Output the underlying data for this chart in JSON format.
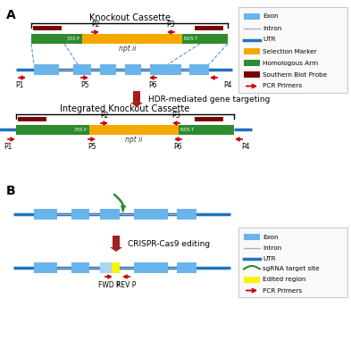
{
  "panel_A_label": "A",
  "panel_B_label": "B",
  "bg_color": "#ffffff",
  "legend_A": {
    "items": [
      {
        "label": "Exon",
        "type": "rect",
        "color": "#6ab4ec"
      },
      {
        "label": "Intron",
        "type": "line",
        "color": "#b0b0b0"
      },
      {
        "label": "UTR",
        "type": "line_thick",
        "color": "#2272c3"
      },
      {
        "label": "Selection Marker",
        "type": "rect",
        "color": "#f5a800"
      },
      {
        "label": "Homologous Arm",
        "type": "rect",
        "color": "#2e8b2e"
      },
      {
        "label": "Southern Blot Probe",
        "type": "rect",
        "color": "#7b0000"
      },
      {
        "label": "PCR Primers",
        "type": "arrow",
        "color": "#cc0000"
      }
    ]
  },
  "legend_B": {
    "items": [
      {
        "label": "Exon",
        "type": "rect",
        "color": "#6ab4ec"
      },
      {
        "label": "Intron",
        "type": "line",
        "color": "#b0b0b0"
      },
      {
        "label": "UTR",
        "type": "line_thick",
        "color": "#2272c3"
      },
      {
        "label": "sgRNA target site",
        "type": "curve",
        "color": "#2e8b2e"
      },
      {
        "label": "Edited region",
        "type": "rect",
        "color": "#f5f500"
      },
      {
        "label": "PCR Primers",
        "type": "arrow",
        "color": "#cc0000"
      }
    ]
  },
  "arrow_label": "HDR-mediated gene targeting",
  "arrow_label_B": "CRISPR-Cas9 editing",
  "ko_cassette_label": "Knockout Cassette",
  "integrated_label": "Integrated Knockout Cassette",
  "nptii_label": "npt ii",
  "colors": {
    "exon": "#6ab4ec",
    "intron": "#b0b0b0",
    "utr": "#2272c3",
    "selection_marker": "#f5a800",
    "homologous_arm": "#2e8b2e",
    "southern_probe": "#7b0000",
    "pcr_primer": "#cc0000",
    "edited": "#f5f500",
    "edited2": "#a0d0ff",
    "sgrna": "#2e8b2e",
    "arrow_fill": "#a02020"
  }
}
